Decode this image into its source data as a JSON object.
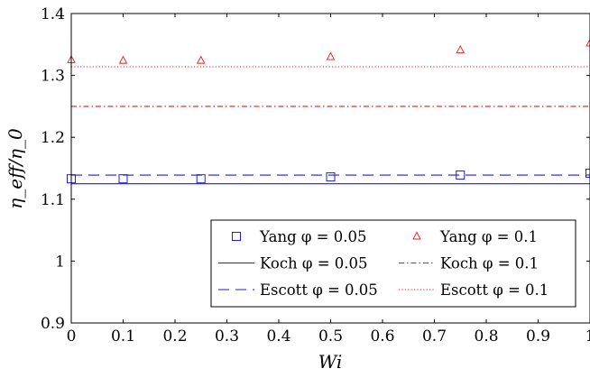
{
  "chart_data": {
    "type": "scatter",
    "xlabel": "Wi",
    "ylabel": "η_eff/η_0",
    "xlim": [
      0,
      1
    ],
    "ylim": [
      0.9,
      1.4
    ],
    "xticks": [
      "0",
      "0.1",
      "0.2",
      "0.3",
      "0.4",
      "0.5",
      "0.6",
      "0.7",
      "0.8",
      "0.9",
      "1"
    ],
    "yticks": [
      "0.9",
      "1",
      "1.1",
      "1.2",
      "1.3",
      "1.4"
    ],
    "legend_position": "bottom-right",
    "series": [
      {
        "name": "Yang φ = 0.05",
        "kind": "markers",
        "marker": "square",
        "color": "#1f1fd6",
        "x": [
          0,
          0.1,
          0.25,
          0.5,
          0.75,
          1.0
        ],
        "y": [
          1.133,
          1.133,
          1.133,
          1.136,
          1.139,
          1.142
        ]
      },
      {
        "name": "Yang φ = 0.1",
        "kind": "markers",
        "marker": "triangle",
        "color": "#e01b1b",
        "x": [
          0,
          0.1,
          0.25,
          0.5,
          0.75,
          1.0
        ],
        "y": [
          1.325,
          1.324,
          1.324,
          1.33,
          1.341,
          1.352
        ]
      },
      {
        "name": "Koch φ = 0.05",
        "kind": "line",
        "dash": "solid",
        "color": "#1f1fd6",
        "x": [
          0,
          1
        ],
        "y": [
          1.125,
          1.125
        ]
      },
      {
        "name": "Koch φ = 0.1",
        "kind": "line",
        "dash": "dashdot",
        "color": "#e01b1b",
        "x": [
          0,
          1
        ],
        "y": [
          1.25,
          1.25
        ]
      },
      {
        "name": "Escott φ = 0.05",
        "kind": "line",
        "dash": "dashed",
        "color": "#1f1fd6",
        "x": [
          0,
          1
        ],
        "y": [
          1.139,
          1.139
        ]
      },
      {
        "name": "Escott φ = 0.1",
        "kind": "line",
        "dash": "dotted",
        "color": "#e01b1b",
        "x": [
          0,
          1
        ],
        "y": [
          1.314,
          1.314
        ]
      }
    ]
  }
}
